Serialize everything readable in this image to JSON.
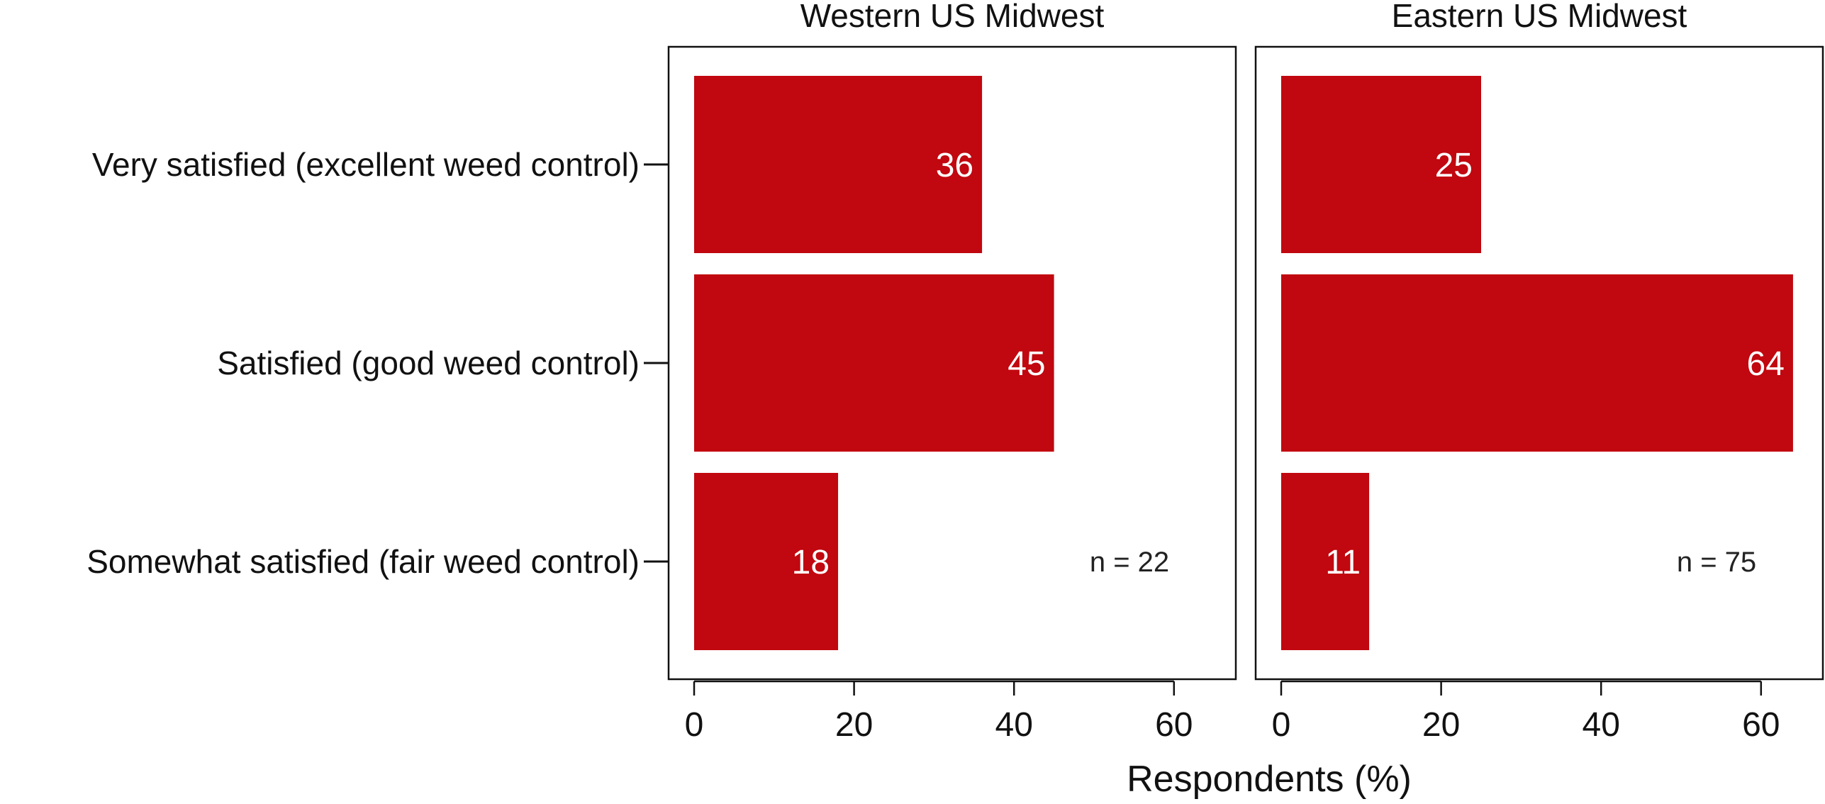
{
  "chart_data": [
    {
      "type": "bar",
      "orientation": "horizontal",
      "title": "Western US Midwest",
      "categories": [
        "Very satisfied (excellent weed control)",
        "Satisfied (good weed control)",
        "Somewhat satisfied (fair weed control)"
      ],
      "values": [
        36,
        45,
        18
      ],
      "data_labels": [
        "36",
        "45",
        "18"
      ],
      "annotation": "n = 22",
      "xlabel": "Respondents (%)",
      "xlim": [
        0,
        68
      ],
      "xticks": [
        0,
        20,
        40,
        60
      ],
      "grid": false
    },
    {
      "type": "bar",
      "orientation": "horizontal",
      "title": "Eastern US Midwest",
      "categories": [
        "Very satisfied (excellent weed control)",
        "Satisfied (good weed control)",
        "Somewhat satisfied (fair weed control)"
      ],
      "values": [
        25,
        64,
        11
      ],
      "data_labels": [
        "25",
        "64",
        "11"
      ],
      "annotation": "n = 75",
      "xlabel": "Respondents (%)",
      "xlim": [
        0,
        68
      ],
      "xticks": [
        0,
        20,
        40,
        60
      ],
      "grid": false
    }
  ],
  "colors": {
    "bar": "#C1070F",
    "axis": "#111111"
  }
}
